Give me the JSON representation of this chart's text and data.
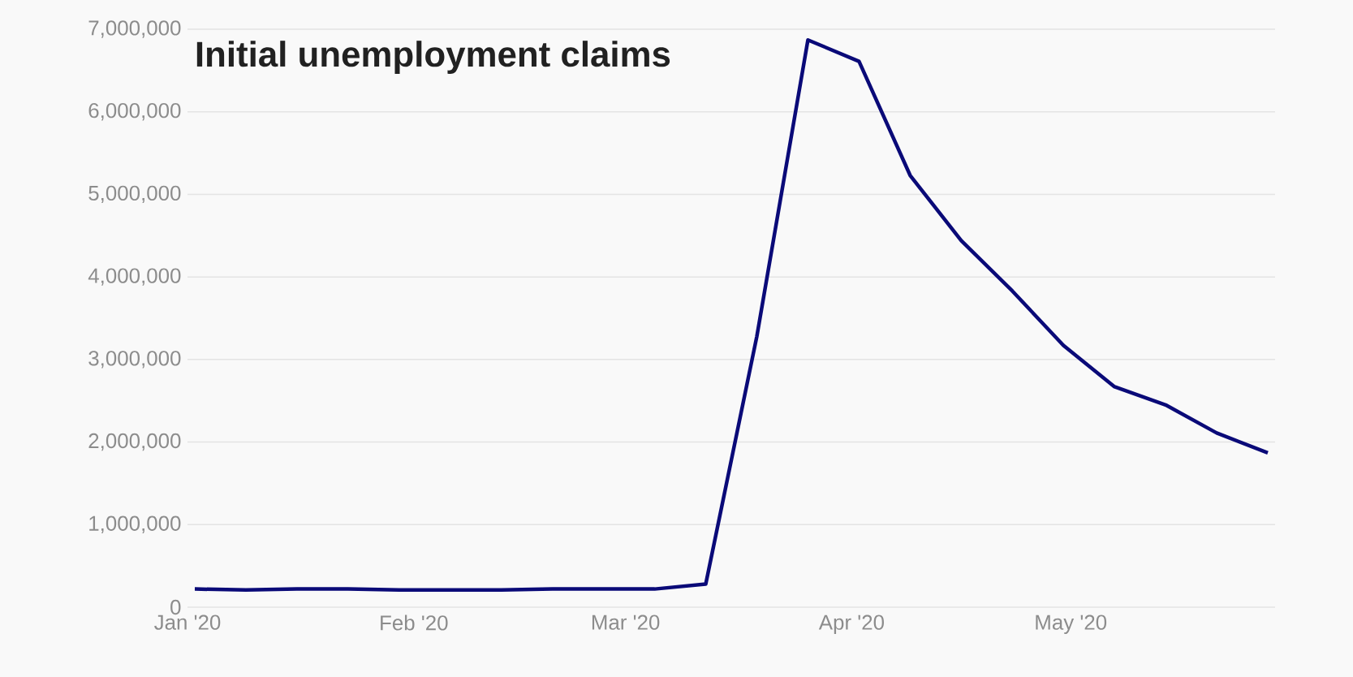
{
  "chart_data": {
    "type": "line",
    "title": "Initial unemployment claims",
    "x": [
      "2020-01-02",
      "2020-01-09",
      "2020-01-16",
      "2020-01-23",
      "2020-01-30",
      "2020-02-06",
      "2020-02-13",
      "2020-02-20",
      "2020-02-27",
      "2020-03-05",
      "2020-03-12",
      "2020-03-19",
      "2020-03-26",
      "2020-04-02",
      "2020-04-09",
      "2020-04-16",
      "2020-04-23",
      "2020-04-30",
      "2020-05-07",
      "2020-05-14",
      "2020-05-21",
      "2020-05-28"
    ],
    "series": [
      {
        "color": "#0a0a78",
        "values": [
          220000,
          210000,
          220000,
          220000,
          210000,
          210000,
          210000,
          220000,
          220000,
          220000,
          280000,
          3280000,
          6870000,
          6610000,
          5230000,
          4440000,
          3830000,
          3170000,
          2670000,
          2450000,
          2110000,
          1870000
        ]
      }
    ],
    "xlim": [
      "2020-01-01",
      "2020-05-29"
    ],
    "xticks": [
      {
        "value": "2020-01-01",
        "label": "Jan '20"
      },
      {
        "value": "2020-02-01",
        "label": "Feb '20"
      },
      {
        "value": "2020-03-01",
        "label": "Mar '20"
      },
      {
        "value": "2020-04-01",
        "label": "Apr '20"
      },
      {
        "value": "2020-05-01",
        "label": "May '20"
      }
    ],
    "ylim": [
      0,
      7000000
    ],
    "yticks": [
      0,
      {
        "value": 1000000,
        "label": "1,000,000"
      },
      {
        "value": 2000000,
        "label": "2,000,000"
      },
      {
        "value": 3000000,
        "label": "3,000,000"
      },
      {
        "value": 4000000,
        "label": "4,000,000"
      },
      {
        "value": 5000000,
        "label": "5,000,000"
      },
      {
        "value": 6000000,
        "label": "6,000,000"
      },
      {
        "value": 7000000,
        "label": "7,000,000"
      }
    ],
    "grid": "y",
    "marker": "none",
    "line_style": "solid"
  }
}
